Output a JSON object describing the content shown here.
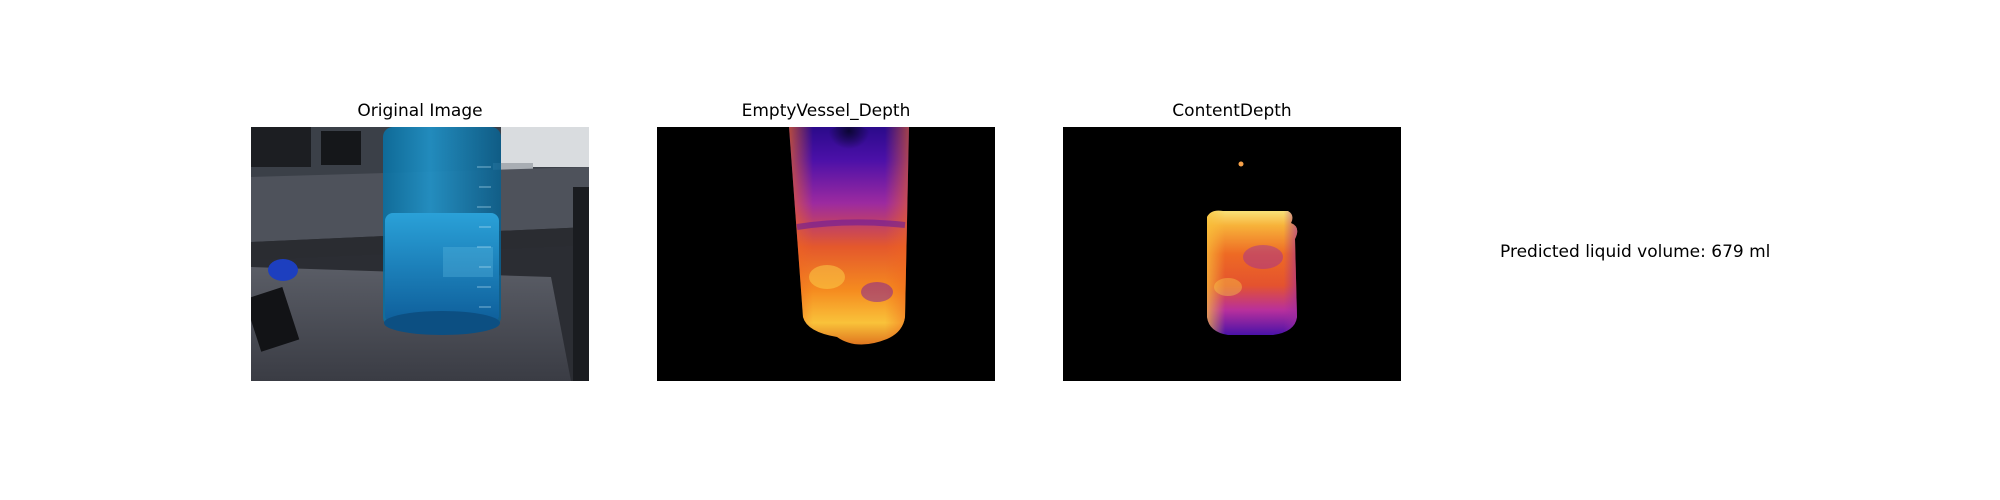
{
  "panels": [
    {
      "title": "Original Image"
    },
    {
      "title": "EmptyVessel_Depth"
    },
    {
      "title": "ContentDepth"
    }
  ],
  "result": {
    "text": "Predicted liquid volume: 679 ml"
  }
}
